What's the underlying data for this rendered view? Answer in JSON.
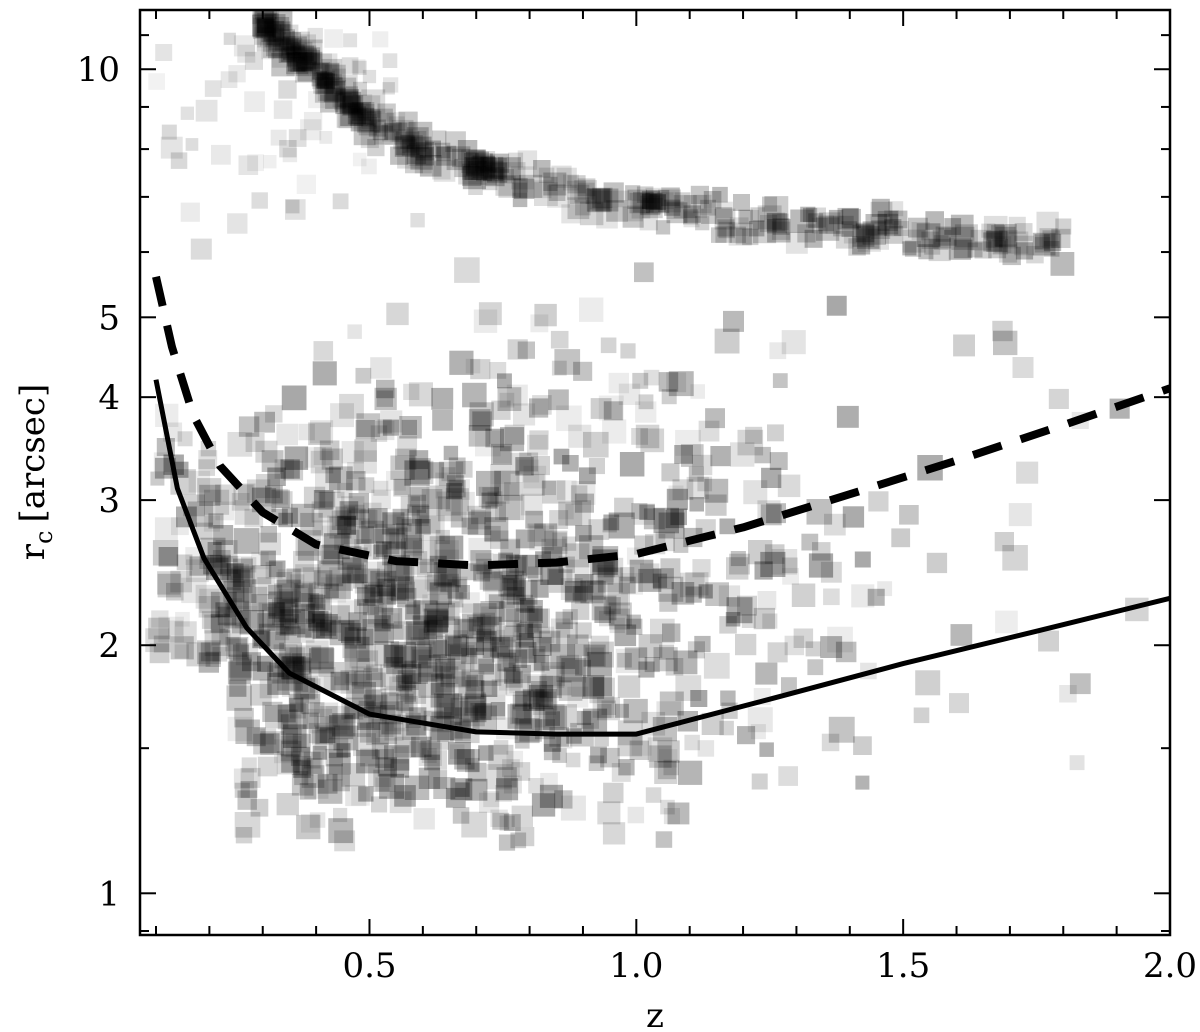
{
  "chart_data": {
    "type": "scatter",
    "xlabel": "z",
    "ylabel": "r",
    "ylabel_subscript": "c",
    "ylabel_unit": "[arcsec]",
    "x_scale": "linear",
    "y_scale": "log",
    "xlim": [
      0.07,
      2.0
    ],
    "ylim": [
      0.89,
      11.8
    ],
    "x_ticks": [
      0.5,
      1.0,
      1.5,
      2.0
    ],
    "x_tick_labels": [
      "0.5",
      "1.0",
      "1.5",
      "2.0"
    ],
    "y_ticks": [
      1,
      2,
      3,
      4,
      5,
      10
    ],
    "y_tick_labels": [
      "1",
      "2",
      "3",
      "4",
      "5",
      "10"
    ],
    "grid": false,
    "legend": "none",
    "series": [
      {
        "style": "solid",
        "color": "#000000",
        "x": [
          0.1,
          0.14,
          0.19,
          0.27,
          0.35,
          0.5,
          0.7,
          0.85,
          1.0,
          1.25,
          1.5,
          1.75,
          2.0
        ],
        "y": [
          4.2,
          3.1,
          2.55,
          2.1,
          1.85,
          1.65,
          1.57,
          1.56,
          1.56,
          1.72,
          1.9,
          2.08,
          2.28
        ]
      },
      {
        "style": "dashed",
        "color": "#000000",
        "x": [
          0.1,
          0.13,
          0.17,
          0.22,
          0.3,
          0.4,
          0.55,
          0.7,
          0.85,
          1.0,
          1.2,
          1.4,
          1.6,
          1.8,
          2.0
        ],
        "y": [
          5.6,
          4.6,
          3.8,
          3.3,
          2.9,
          2.65,
          2.53,
          2.5,
          2.52,
          2.58,
          2.78,
          3.05,
          3.35,
          3.7,
          4.1
        ]
      }
    ],
    "point_cloud": {
      "color": "#000000",
      "marker": "square",
      "main": {
        "x_range": [
          0.1,
          1.97
        ],
        "y_range": [
          1.15,
          7.2
        ],
        "peak_x": 0.55,
        "peak_y": 2.0
      },
      "upper_ridge": {
        "x": [
          0.3,
          0.4,
          0.5,
          0.6,
          0.75,
          0.9,
          1.1,
          1.3,
          1.5,
          1.7,
          1.8
        ],
        "y": [
          11.5,
          9.8,
          8.7,
          8.0,
          7.5,
          7.1,
          6.7,
          6.5,
          6.3,
          6.2,
          6.2
        ]
      }
    }
  }
}
